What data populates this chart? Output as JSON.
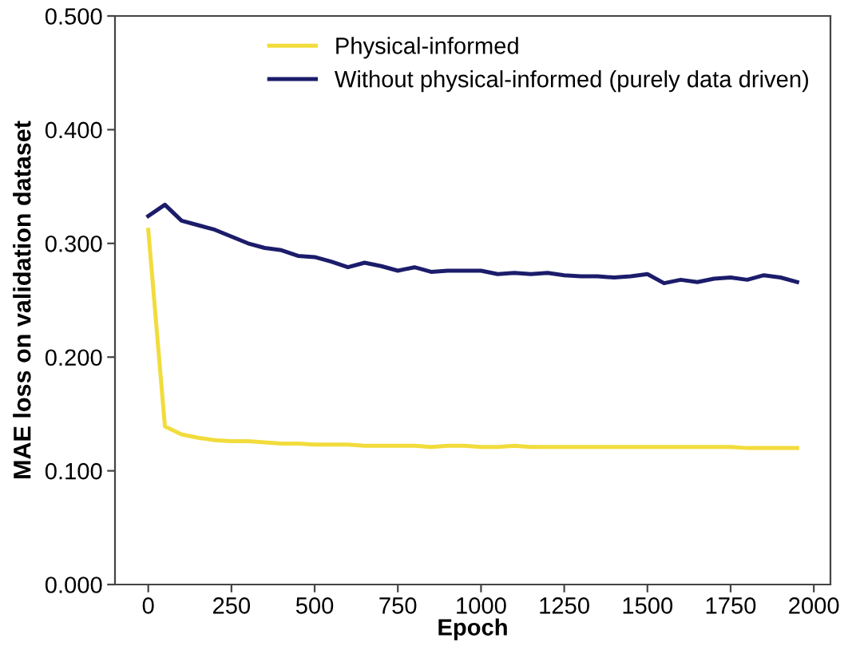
{
  "chart_data": {
    "type": "line",
    "xlabel": "Epoch",
    "ylabel": "MAE loss on validation dataset",
    "x": [
      0,
      50,
      100,
      150,
      200,
      250,
      300,
      350,
      400,
      450,
      500,
      550,
      600,
      650,
      700,
      750,
      800,
      850,
      900,
      950,
      1000,
      1050,
      1100,
      1150,
      1200,
      1250,
      1300,
      1350,
      1400,
      1450,
      1500,
      1550,
      1600,
      1650,
      1700,
      1750,
      1800,
      1850,
      1900,
      1950
    ],
    "series": [
      {
        "name": "Physical-informed",
        "color": "#f2dc3c",
        "values": [
          0.312,
          0.139,
          0.132,
          0.129,
          0.127,
          0.126,
          0.126,
          0.125,
          0.124,
          0.124,
          0.123,
          0.123,
          0.123,
          0.122,
          0.122,
          0.122,
          0.122,
          0.121,
          0.122,
          0.122,
          0.121,
          0.121,
          0.122,
          0.121,
          0.121,
          0.121,
          0.121,
          0.121,
          0.121,
          0.121,
          0.121,
          0.121,
          0.121,
          0.121,
          0.121,
          0.121,
          0.12,
          0.12,
          0.12,
          0.12
        ]
      },
      {
        "name": "Without physical-informed (purely data driven)",
        "color": "#1c1c6b",
        "values": [
          0.324,
          0.334,
          0.32,
          0.316,
          0.312,
          0.306,
          0.3,
          0.296,
          0.294,
          0.289,
          0.288,
          0.284,
          0.279,
          0.283,
          0.28,
          0.276,
          0.279,
          0.275,
          0.276,
          0.276,
          0.276,
          0.273,
          0.274,
          0.273,
          0.274,
          0.272,
          0.271,
          0.271,
          0.27,
          0.271,
          0.273,
          0.265,
          0.268,
          0.266,
          0.269,
          0.27,
          0.268,
          0.272,
          0.27,
          0.266
        ]
      }
    ],
    "xlim": [
      -100,
      2050
    ],
    "xticks": [
      0,
      250,
      500,
      750,
      1000,
      1250,
      1500,
      1750,
      2000
    ],
    "ylim": [
      0,
      0.5
    ],
    "yticks": [
      {
        "value": 0,
        "label": "0.000"
      },
      {
        "value": 0.1,
        "label": "0.100"
      },
      {
        "value": 0.2,
        "label": "0.200"
      },
      {
        "value": 0.3,
        "label": "0.300"
      },
      {
        "value": 0.4,
        "label": "0.400"
      },
      {
        "value": 0.5,
        "label": "0.500"
      }
    ],
    "grid": false,
    "legend": "top right",
    "marker": "none",
    "line_style": "solid"
  }
}
